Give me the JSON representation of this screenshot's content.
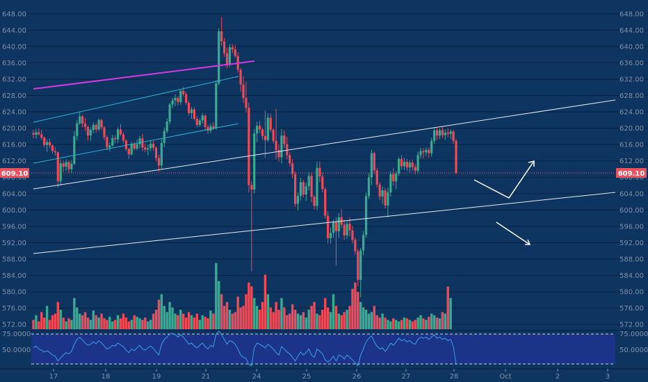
{
  "colors": {
    "background": "#0e3560",
    "gridline": "#062140",
    "up": "#3aab8e",
    "down": "#ee4a57",
    "cyan_channel": "#2ab4d6",
    "magenta_line": "#d438e0",
    "white_line": "#e6eef7",
    "indicator_bg": "#1c3488",
    "indicator_line": "#3b9fe8",
    "badge": "#e9535f",
    "tick_text": "#7d93ad"
  },
  "price_badge": {
    "left": "609.10",
    "right": "609.10"
  },
  "chart_data": {
    "type": "candlestick",
    "price_axis": {
      "ticks": [
        "648.00",
        "644.00",
        "640.00",
        "636.00",
        "632.00",
        "628.00",
        "624.00",
        "620.00",
        "616.00",
        "612.00",
        "608.00",
        "604.00",
        "600.00",
        "596.00",
        "592.00",
        "588.00",
        "584.00",
        "580.00",
        "576.00",
        "572.00"
      ],
      "ylim": [
        570.5,
        650.0
      ],
      "last_price": 609.1
    },
    "x_axis": {
      "labels": [
        "17",
        "18",
        "19",
        "21",
        "24",
        "25",
        "26",
        "27",
        "28",
        "Oct",
        "2",
        "3"
      ]
    },
    "indicator": {
      "ticks": [
        "75.0000",
        "50.0000"
      ],
      "levels": [
        75,
        25
      ],
      "ylim": [
        20,
        80
      ]
    },
    "candles": [
      [
        618.8,
        619.6,
        617.6,
        618.4
      ],
      [
        618.4,
        619.9,
        617.4,
        619.0
      ],
      [
        619.0,
        620.0,
        618.2,
        618.5
      ],
      [
        618.5,
        619.6,
        617.1,
        617.7
      ],
      [
        617.7,
        618.0,
        615.3,
        615.9
      ],
      [
        615.9,
        617.2,
        614.2,
        616.6
      ],
      [
        616.6,
        617.5,
        615.1,
        615.8
      ],
      [
        615.8,
        616.1,
        613.8,
        614.4
      ],
      [
        614.4,
        615.4,
        613.3,
        614.1
      ],
      [
        614.1,
        614.3,
        605.5,
        607.0
      ],
      [
        607.0,
        612.3,
        606.0,
        611.4
      ],
      [
        611.4,
        612.1,
        609.3,
        610.6
      ],
      [
        610.6,
        612.4,
        609.6,
        611.7
      ],
      [
        611.7,
        612.2,
        609.0,
        610.0
      ],
      [
        610.0,
        612.2,
        609.1,
        611.3
      ],
      [
        611.3,
        619.3,
        611.0,
        618.1
      ],
      [
        618.1,
        622.0,
        617.0,
        621.2
      ],
      [
        621.2,
        623.8,
        620.8,
        622.9
      ],
      [
        622.9,
        623.2,
        620.2,
        621.1
      ],
      [
        621.1,
        622.5,
        619.3,
        620.3
      ],
      [
        620.3,
        620.6,
        617.0,
        618.2
      ],
      [
        618.2,
        620.3,
        616.9,
        619.6
      ],
      [
        619.6,
        621.4,
        618.8,
        620.8
      ],
      [
        620.8,
        621.2,
        618.9,
        619.7
      ],
      [
        619.7,
        622.4,
        619.3,
        622.0
      ],
      [
        622.0,
        622.3,
        619.6,
        620.2
      ],
      [
        620.2,
        620.5,
        617.1,
        617.8
      ],
      [
        617.8,
        618.2,
        614.6,
        615.3
      ],
      [
        615.3,
        616.5,
        614.3,
        615.8
      ],
      [
        615.8,
        618.4,
        615.4,
        617.6
      ],
      [
        617.6,
        618.3,
        616.4,
        617.3
      ],
      [
        617.3,
        620.2,
        616.4,
        619.7
      ],
      [
        619.7,
        621.0,
        618.1,
        618.5
      ],
      [
        618.5,
        619.0,
        616.4,
        617.0
      ],
      [
        617.0,
        617.3,
        614.4,
        614.9
      ],
      [
        614.9,
        615.2,
        612.5,
        613.6
      ],
      [
        613.6,
        616.7,
        613.3,
        616.1
      ],
      [
        616.1,
        616.6,
        614.5,
        615.0
      ],
      [
        615.0,
        617.2,
        614.6,
        616.1
      ],
      [
        616.1,
        618.1,
        615.1,
        617.5
      ],
      [
        617.5,
        618.6,
        614.4,
        615.3
      ],
      [
        615.3,
        616.2,
        614.2,
        614.8
      ],
      [
        614.8,
        616.0,
        613.4,
        615.1
      ],
      [
        615.1,
        617.0,
        614.4,
        616.2
      ],
      [
        616.2,
        616.9,
        614.5,
        615.2
      ],
      [
        615.2,
        615.5,
        611.9,
        612.7
      ],
      [
        612.7,
        613.5,
        609.4,
        610.9
      ],
      [
        610.9,
        617.5,
        610.1,
        616.4
      ],
      [
        616.4,
        620.2,
        615.4,
        619.3
      ],
      [
        619.3,
        622.4,
        618.8,
        621.6
      ],
      [
        621.6,
        626.2,
        620.9,
        625.8
      ],
      [
        625.8,
        627.4,
        624.9,
        626.8
      ],
      [
        626.8,
        628.3,
        625.4,
        627.4
      ],
      [
        627.4,
        627.9,
        625.6,
        626.4
      ],
      [
        626.4,
        629.6,
        625.7,
        629.1
      ],
      [
        629.1,
        630.1,
        627.8,
        628.3
      ],
      [
        628.3,
        628.9,
        625.7,
        626.2
      ],
      [
        626.2,
        626.8,
        623.1,
        623.7
      ],
      [
        623.7,
        625.2,
        622.3,
        624.6
      ],
      [
        624.6,
        625.2,
        621.9,
        622.3
      ],
      [
        622.3,
        623.0,
        620.2,
        620.8
      ],
      [
        620.8,
        622.4,
        620.3,
        621.9
      ],
      [
        621.9,
        623.7,
        621.2,
        623.1
      ],
      [
        623.1,
        623.4,
        619.6,
        620.3
      ],
      [
        620.3,
        620.8,
        618.6,
        619.4
      ],
      [
        619.4,
        621.1,
        618.8,
        620.5
      ],
      [
        620.5,
        621.5,
        619.6,
        620.0
      ],
      [
        620.0,
        631.8,
        619.6,
        631.0
      ],
      [
        631.0,
        644.5,
        630.5,
        643.7
      ],
      [
        643.7,
        647.2,
        640.2,
        641.2
      ],
      [
        641.2,
        642.1,
        637.5,
        638.3
      ],
      [
        638.3,
        639.8,
        634.7,
        635.6
      ],
      [
        635.6,
        640.5,
        635.0,
        639.8
      ],
      [
        639.8,
        640.6,
        638.4,
        639.3
      ],
      [
        639.3,
        640.3,
        637.2,
        637.7
      ],
      [
        637.7,
        638.6,
        633.6,
        634.3
      ],
      [
        634.3,
        634.8,
        628.9,
        630.7
      ],
      [
        630.7,
        632.7,
        626.2,
        627.4
      ],
      [
        627.4,
        631.4,
        623.8,
        625.0
      ],
      [
        625.0,
        626.2,
        604.3,
        606.1
      ],
      [
        606.1,
        607.0,
        585.0,
        605.0
      ],
      [
        605.0,
        619.9,
        604.0,
        618.7
      ],
      [
        618.7,
        621.6,
        616.6,
        620.6
      ],
      [
        620.6,
        621.8,
        618.8,
        619.7
      ],
      [
        619.7,
        620.2,
        617.2,
        618.1
      ],
      [
        618.1,
        624.3,
        612.7,
        617.1
      ],
      [
        617.1,
        623.7,
        616.6,
        622.6
      ],
      [
        622.6,
        623.6,
        619.0,
        619.6
      ],
      [
        619.6,
        620.1,
        616.3,
        616.9
      ],
      [
        616.9,
        624.7,
        612.4,
        614.6
      ],
      [
        614.6,
        616.1,
        611.8,
        612.9
      ],
      [
        612.9,
        619.8,
        611.4,
        618.2
      ],
      [
        618.2,
        619.5,
        615.1,
        616.1
      ],
      [
        616.1,
        617.9,
        612.4,
        613.4
      ],
      [
        613.4,
        614.1,
        610.6,
        611.4
      ],
      [
        611.4,
        612.4,
        607.8,
        608.8
      ],
      [
        608.8,
        609.4,
        600.8,
        601.5
      ],
      [
        601.5,
        604.3,
        599.9,
        603.4
      ],
      [
        603.4,
        607.9,
        602.3,
        606.8
      ],
      [
        606.8,
        607.4,
        603.1,
        603.8
      ],
      [
        603.8,
        606.7,
        602.2,
        605.8
      ],
      [
        605.8,
        609.3,
        604.8,
        608.3
      ],
      [
        608.3,
        609.1,
        601.9,
        603.2
      ],
      [
        603.2,
        603.7,
        600.1,
        601.0
      ],
      [
        601.0,
        611.9,
        599.9,
        610.3
      ],
      [
        610.3,
        611.9,
        606.9,
        608.2
      ],
      [
        608.2,
        609.2,
        604.3,
        605.1
      ],
      [
        605.1,
        605.6,
        597.9,
        598.6
      ],
      [
        598.6,
        599.7,
        591.7,
        593.1
      ],
      [
        593.1,
        595.7,
        591.8,
        594.4
      ],
      [
        594.4,
        597.7,
        593.2,
        597.0
      ],
      [
        597.0,
        598.2,
        586.5,
        594.8
      ],
      [
        594.8,
        599.2,
        593.2,
        598.2
      ],
      [
        598.2,
        600.3,
        595.6,
        596.4
      ],
      [
        596.4,
        597.6,
        592.7,
        593.8
      ],
      [
        593.8,
        597.4,
        593.0,
        596.6
      ],
      [
        596.6,
        598.2,
        593.5,
        595.0
      ],
      [
        595.0,
        596.1,
        591.8,
        592.7
      ],
      [
        592.7,
        593.3,
        589.1,
        589.9
      ],
      [
        589.9,
        590.4,
        581.4,
        582.9
      ],
      [
        582.9,
        590.7,
        578.6,
        590.1
      ],
      [
        590.1,
        594.9,
        588.9,
        593.9
      ],
      [
        593.9,
        604.2,
        593.2,
        603.4
      ],
      [
        603.4,
        609.1,
        602.7,
        608.0
      ],
      [
        608.0,
        614.7,
        606.1,
        613.9
      ],
      [
        613.9,
        614.3,
        608.8,
        609.7
      ],
      [
        609.7,
        610.3,
        605.5,
        606.2
      ],
      [
        606.2,
        606.8,
        602.4,
        603.3
      ],
      [
        603.3,
        605.7,
        601.5,
        604.8
      ],
      [
        604.8,
        605.4,
        600.4,
        601.1
      ],
      [
        601.1,
        605.5,
        598.2,
        604.3
      ],
      [
        604.3,
        609.5,
        603.3,
        608.8
      ],
      [
        608.8,
        610.2,
        605.9,
        607.0
      ],
      [
        607.0,
        609.5,
        605.1,
        608.9
      ],
      [
        608.9,
        612.9,
        608.4,
        612.5
      ],
      [
        612.5,
        613.4,
        609.9,
        610.7
      ],
      [
        610.7,
        612.8,
        609.8,
        611.8
      ],
      [
        611.8,
        612.5,
        609.6,
        610.4
      ],
      [
        610.4,
        612.2,
        609.3,
        611.6
      ],
      [
        611.6,
        612.3,
        609.6,
        610.5
      ],
      [
        610.5,
        611.2,
        608.7,
        609.6
      ],
      [
        609.6,
        614.3,
        609.0,
        613.4
      ],
      [
        613.4,
        615.2,
        612.7,
        614.4
      ],
      [
        614.4,
        615.1,
        612.6,
        614.1
      ],
      [
        614.1,
        615.3,
        613.2,
        614.7
      ],
      [
        614.7,
        615.3,
        612.8,
        613.9
      ],
      [
        613.9,
        617.6,
        613.1,
        616.9
      ],
      [
        616.9,
        620.3,
        616.2,
        619.5
      ],
      [
        619.5,
        620.1,
        617.2,
        618.2
      ],
      [
        618.2,
        620.0,
        617.4,
        619.5
      ],
      [
        619.5,
        620.3,
        617.6,
        618.3
      ],
      [
        618.3,
        619.7,
        617.2,
        618.9
      ],
      [
        618.9,
        620.0,
        617.8,
        618.6
      ],
      [
        618.6,
        619.7,
        617.4,
        619.2
      ],
      [
        619.2,
        619.6,
        616.2,
        616.9
      ],
      [
        616.9,
        617.4,
        608.8,
        609.1
      ]
    ],
    "volume": [
      0.12,
      0.18,
      0.1,
      0.22,
      0.15,
      0.3,
      0.12,
      0.18,
      0.2,
      0.35,
      0.25,
      0.15,
      0.1,
      0.14,
      0.12,
      0.4,
      0.28,
      0.2,
      0.18,
      0.22,
      0.15,
      0.12,
      0.24,
      0.18,
      0.15,
      0.2,
      0.14,
      0.12,
      0.16,
      0.1,
      0.12,
      0.18,
      0.14,
      0.2,
      0.15,
      0.1,
      0.12,
      0.18,
      0.16,
      0.14,
      0.12,
      0.15,
      0.1,
      0.12,
      0.2,
      0.25,
      0.38,
      0.45,
      0.3,
      0.22,
      0.35,
      0.28,
      0.2,
      0.18,
      0.25,
      0.2,
      0.15,
      0.22,
      0.18,
      0.15,
      0.2,
      0.12,
      0.18,
      0.16,
      0.14,
      0.24,
      0.2,
      0.85,
      0.62,
      0.45,
      0.3,
      0.35,
      0.25,
      0.2,
      0.22,
      0.42,
      0.28,
      0.3,
      0.45,
      0.6,
      0.55,
      0.4,
      0.3,
      0.25,
      0.35,
      0.7,
      0.45,
      0.28,
      0.22,
      0.35,
      0.25,
      0.4,
      0.28,
      0.18,
      0.2,
      0.32,
      0.25,
      0.2,
      0.18,
      0.22,
      0.15,
      0.25,
      0.3,
      0.35,
      0.2,
      0.18,
      0.25,
      0.4,
      0.28,
      0.22,
      0.45,
      0.3,
      0.2,
      0.18,
      0.22,
      0.25,
      0.3,
      0.52,
      0.6,
      0.48,
      0.35,
      0.28,
      0.25,
      0.2,
      0.22,
      0.3,
      0.18,
      0.15,
      0.2,
      0.15,
      0.12,
      0.1,
      0.14,
      0.12,
      0.1,
      0.12,
      0.15,
      0.14,
      0.12,
      0.1,
      0.12,
      0.15,
      0.18,
      0.14,
      0.12,
      0.16,
      0.2,
      0.18,
      0.15,
      0.14,
      0.22,
      0.2,
      0.55,
      0.4
    ],
    "indicator_values": [
      52,
      55,
      50,
      48,
      45,
      47,
      44,
      40,
      38,
      30,
      35,
      40,
      44,
      42,
      46,
      58,
      66,
      70,
      65,
      60,
      56,
      58,
      62,
      59,
      64,
      60,
      55,
      50,
      52,
      56,
      55,
      60,
      57,
      54,
      48,
      44,
      50,
      47,
      52,
      56,
      50,
      48,
      52,
      55,
      51,
      45,
      40,
      58,
      66,
      70,
      75,
      76,
      74,
      70,
      74,
      70,
      64,
      58,
      60,
      55,
      52,
      56,
      60,
      54,
      50,
      56,
      54,
      75,
      80,
      74,
      66,
      58,
      64,
      62,
      58,
      50,
      40,
      36,
      34,
      24,
      22,
      52,
      60,
      58,
      55,
      52,
      58,
      54,
      50,
      44,
      40,
      54,
      50,
      45,
      42,
      36,
      30,
      38,
      45,
      40,
      44,
      50,
      40,
      36,
      50,
      46,
      42,
      32,
      28,
      32,
      38,
      30,
      40,
      38,
      33,
      40,
      36,
      32,
      27,
      22,
      40,
      50,
      62,
      68,
      72,
      62,
      55,
      50,
      52,
      46,
      52,
      60,
      56,
      62,
      68,
      64,
      66,
      62,
      64,
      60,
      58,
      66,
      70,
      68,
      70,
      66,
      70,
      74,
      68,
      70,
      66,
      68,
      64,
      66,
      54,
      24
    ]
  }
}
